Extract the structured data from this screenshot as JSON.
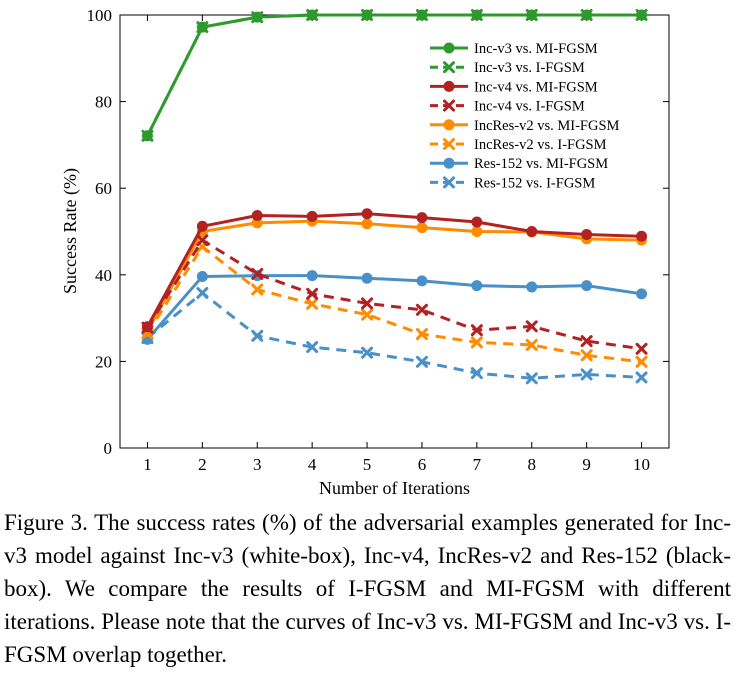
{
  "chart_data": {
    "type": "line",
    "xlabel": "Number of Iterations",
    "ylabel": "Success Rate (%)",
    "xlim": [
      0.5,
      10.5
    ],
    "ylim": [
      0,
      100
    ],
    "x": [
      1,
      2,
      3,
      4,
      5,
      6,
      7,
      8,
      9,
      10
    ],
    "xticks": [
      1,
      2,
      3,
      4,
      5,
      6,
      7,
      8,
      9,
      10
    ],
    "yticks": [
      0,
      20,
      40,
      60,
      80,
      100
    ],
    "grid": false,
    "legend_position": "top-right",
    "series": [
      {
        "name": "Inc-v3 vs. MI-FGSM",
        "color": "#2e9a2e",
        "dash": "solid",
        "marker": "circle",
        "values": [
          72.1,
          97.2,
          99.5,
          100.0,
          100.0,
          100.0,
          100.0,
          100.0,
          100.0,
          100.0
        ]
      },
      {
        "name": "Inc-v3 vs. I-FGSM",
        "color": "#2e9a2e",
        "dash": "dashed",
        "marker": "x",
        "values": [
          72.1,
          97.2,
          99.5,
          100.0,
          100.0,
          100.0,
          100.0,
          100.0,
          100.0,
          100.0
        ]
      },
      {
        "name": "Inc-v4 vs. MI-FGSM",
        "color": "#b22222",
        "dash": "solid",
        "marker": "circle",
        "values": [
          28.0,
          51.2,
          53.7,
          53.5,
          54.1,
          53.2,
          52.2,
          50.0,
          49.3,
          48.9
        ]
      },
      {
        "name": "Inc-v4 vs. I-FGSM",
        "color": "#b22222",
        "dash": "dashed",
        "marker": "x",
        "values": [
          27.8,
          48.0,
          40.2,
          35.6,
          33.4,
          31.9,
          27.2,
          28.1,
          24.7,
          22.9
        ]
      },
      {
        "name": "IncRes-v2 vs. MI-FGSM",
        "color": "#ff8c00",
        "dash": "solid",
        "marker": "circle",
        "values": [
          27.0,
          50.0,
          52.0,
          52.4,
          51.8,
          50.9,
          50.0,
          49.9,
          48.3,
          48.0
        ]
      },
      {
        "name": "IncRes-v2 vs. I-FGSM",
        "color": "#ff8c00",
        "dash": "dashed",
        "marker": "x",
        "values": [
          26.5,
          46.5,
          36.6,
          33.3,
          30.8,
          26.3,
          24.4,
          23.8,
          21.4,
          19.9
        ]
      },
      {
        "name": "Res-152 vs. MI-FGSM",
        "color": "#4a90c8",
        "dash": "solid",
        "marker": "circle",
        "values": [
          25.1,
          39.6,
          39.8,
          39.8,
          39.2,
          38.6,
          37.5,
          37.2,
          37.5,
          35.6
        ]
      },
      {
        "name": "Res-152 vs. I-FGSM",
        "color": "#4a90c8",
        "dash": "dashed",
        "marker": "x",
        "values": [
          25.4,
          35.8,
          25.9,
          23.3,
          22.0,
          19.9,
          17.3,
          16.1,
          17.0,
          16.3
        ]
      }
    ]
  },
  "caption": "Figure 3. The success rates (%) of the adversarial examples generated for Inc-v3 model against Inc-v3 (white-box), Inc-v4, IncRes-v2 and Res-152 (black-box). We compare the results of I-FGSM and MI-FGSM with different iterations. Please note that the curves of Inc-v3 vs. MI-FGSM and Inc-v3 vs. I-FGSM overlap together."
}
